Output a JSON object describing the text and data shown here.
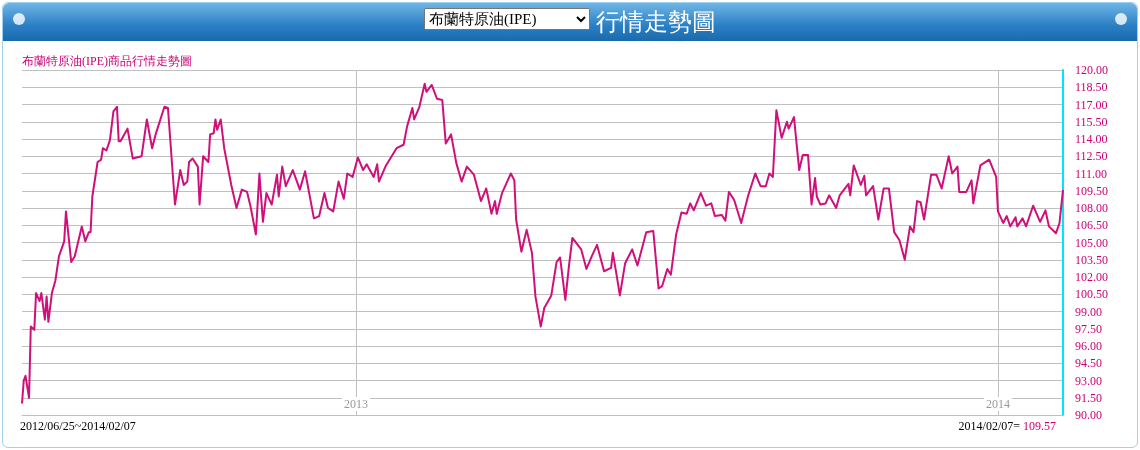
{
  "chart_data": {
    "type": "line",
    "title": "行情走勢圖",
    "subtitle": "布蘭特原油(IPE)商品行情走勢圖",
    "annotations": [
      "布蘭特原油(IPE)",
      "2012/06/25~2014/02/07",
      "2014/02/07= 109.57"
    ],
    "x": [
      "2012-06-25",
      "2012-06-26",
      "2012-06-27",
      "2012-06-29",
      "2012-06-30",
      "2012-07-02",
      "2012-07-03",
      "2012-07-05",
      "2012-07-06",
      "2012-07-08",
      "2012-07-09",
      "2012-07-10",
      "2012-07-12",
      "2012-07-14",
      "2012-07-16",
      "2012-07-19",
      "2012-07-20",
      "2012-07-23",
      "2012-07-25",
      "2012-07-29",
      "2012-07-31",
      "2012-08-02",
      "2012-08-03",
      "2012-08-04",
      "2012-08-07",
      "2012-08-09",
      "2012-08-10",
      "2012-08-12",
      "2012-08-14",
      "2012-08-16",
      "2012-08-18",
      "2012-08-19",
      "2012-08-20",
      "2012-08-24",
      "2012-08-27",
      "2012-09-01",
      "2012-09-04",
      "2012-09-07",
      "2012-09-09",
      "2012-09-14",
      "2012-09-16",
      "2012-09-20",
      "2012-09-23",
      "2012-09-25",
      "2012-09-27",
      "2012-09-28",
      "2012-09-30",
      "2012-10-03",
      "2012-10-04",
      "2012-10-06",
      "2012-10-09",
      "2012-10-10",
      "2012-10-12",
      "2012-10-13",
      "2012-10-14",
      "2012-10-16",
      "2012-10-18",
      "2012-10-22",
      "2012-10-25",
      "2012-10-28",
      "2012-10-31",
      "2012-11-02",
      "2012-11-05",
      "2012-11-07",
      "2012-11-09",
      "2012-11-11",
      "2012-11-14",
      "2012-11-17",
      "2012-11-18",
      "2012-11-20",
      "2012-11-22",
      "2012-11-26",
      "2012-11-30",
      "2012-12-03",
      "2012-12-08",
      "2012-12-11",
      "2012-12-14",
      "2012-12-16",
      "2012-12-19",
      "2012-12-22",
      "2012-12-25",
      "2012-12-27",
      "2012-12-30",
      "2013-01-02",
      "2013-01-05",
      "2013-01-07",
      "2013-01-11",
      "2013-01-13",
      "2013-01-14",
      "2013-01-18",
      "2013-01-24",
      "2013-01-28",
      "2013-01-30",
      "2013-02-02",
      "2013-02-03",
      "2013-02-06",
      "2013-02-09",
      "2013-02-10",
      "2013-02-13",
      "2013-02-16",
      "2013-02-19",
      "2013-02-21",
      "2013-02-24",
      "2013-02-27",
      "2013-03-02",
      "2013-03-05",
      "2013-03-09",
      "2013-03-13",
      "2013-03-16",
      "2013-03-19",
      "2013-03-21",
      "2013-03-22",
      "2013-03-25",
      "2013-03-30",
      "2013-04-01",
      "2013-04-02",
      "2013-04-05",
      "2013-04-08",
      "2013-04-11",
      "2013-04-13",
      "2013-04-16",
      "2013-04-18",
      "2013-04-22",
      "2013-04-25",
      "2013-04-27",
      "2013-04-30",
      "2013-05-02",
      "2013-05-04",
      "2013-05-09",
      "2013-05-12",
      "2013-05-15",
      "2013-05-18",
      "2013-05-22",
      "2013-05-26",
      "2013-05-27",
      "2013-05-29",
      "2013-05-31",
      "2013-06-03",
      "2013-06-07",
      "2013-06-10",
      "2013-06-15",
      "2013-06-19",
      "2013-06-22",
      "2013-06-24",
      "2013-06-27",
      "2013-06-29",
      "2013-07-02",
      "2013-07-05",
      "2013-07-08",
      "2013-07-10",
      "2013-07-12",
      "2013-07-16",
      "2013-07-19",
      "2013-07-22",
      "2013-07-24",
      "2013-07-28",
      "2013-07-30",
      "2013-08-01",
      "2013-08-04",
      "2013-08-08",
      "2013-08-12",
      "2013-08-16",
      "2013-08-19",
      "2013-08-22",
      "2013-08-24",
      "2013-08-26",
      "2013-08-28",
      "2013-08-31",
      "2013-09-03",
      "2013-09-04",
      "2013-09-07",
      "2013-09-10",
      "2013-09-12",
      "2013-09-15",
      "2013-09-17",
      "2013-09-19",
      "2013-09-20",
      "2013-09-22",
      "2013-09-25",
      "2013-09-27",
      "2013-10-01",
      "2013-10-03",
      "2013-10-08",
      "2013-10-09",
      "2013-10-11",
      "2013-10-15",
      "2013-10-17",
      "2013-10-18",
      "2013-10-22",
      "2013-10-25",
      "2013-10-28",
      "2013-10-31",
      "2013-11-03",
      "2013-11-06",
      "2013-11-09",
      "2013-11-12",
      "2013-11-14",
      "2013-11-16",
      "2013-11-18",
      "2013-11-20",
      "2013-11-24",
      "2013-11-27",
      "2013-11-30",
      "2013-12-04",
      "2013-12-06",
      "2013-12-09",
      "2013-12-10",
      "2013-12-14",
      "2013-12-17",
      "2013-12-18",
      "2013-12-22",
      "2013-12-27",
      "2013-12-31",
      "2014-01-01",
      "2014-01-04",
      "2014-01-06",
      "2014-01-08",
      "2014-01-11",
      "2014-01-12",
      "2014-01-15",
      "2014-01-17",
      "2014-01-21",
      "2014-01-25",
      "2014-01-28",
      "2014-01-30",
      "2014-02-03",
      "2014-02-05",
      "2014-02-07"
    ],
    "series": [
      {
        "color": "#d0107a",
        "values": [
          91.0,
          93.0,
          93.4,
          91.5,
          97.7,
          97.4,
          100.6,
          99.9,
          100.6,
          98.3,
          100.3,
          98.1,
          100.6,
          101.7,
          103.8,
          105.1,
          107.7,
          103.3,
          103.8,
          106.4,
          105.1,
          105.9,
          105.9,
          109.0,
          112.0,
          112.2,
          113.2,
          113.0,
          113.9,
          116.4,
          116.8,
          113.8,
          113.8,
          114.9,
          112.3,
          112.5,
          115.7,
          113.2,
          114.4,
          116.8,
          116.7,
          108.3,
          111.3,
          110.0,
          110.3,
          112.0,
          112.3,
          111.6,
          108.3,
          112.5,
          112.0,
          114.4,
          114.5,
          115.7,
          114.8,
          115.7,
          113.2,
          110.0,
          108.0,
          109.6,
          109.4,
          108.1,
          105.7,
          111.0,
          106.8,
          109.3,
          108.3,
          110.9,
          109.0,
          111.6,
          109.9,
          111.3,
          109.6,
          111.2,
          107.1,
          107.3,
          109.3,
          108.0,
          107.7,
          110.3,
          108.8,
          111.0,
          110.7,
          112.4,
          111.3,
          111.8,
          110.7,
          111.8,
          110.3,
          111.7,
          113.2,
          113.5,
          115.1,
          116.7,
          115.7,
          116.8,
          118.8,
          118.1,
          118.7,
          117.5,
          117.4,
          113.6,
          114.4,
          111.9,
          110.3,
          111.6,
          110.9,
          108.6,
          109.7,
          107.5,
          108.6,
          107.5,
          109.3,
          111.0,
          110.4,
          107.0,
          104.2,
          106.1,
          104.1,
          100.3,
          97.7,
          99.3,
          100.4,
          103.3,
          103.7,
          100.0,
          102.9,
          105.4,
          104.4,
          102.7,
          103.8,
          104.8,
          102.5,
          102.8,
          104.1,
          102.3,
          100.4,
          103.2,
          104.4,
          103.0,
          105.9,
          106.0,
          101.0,
          101.2,
          102.7,
          102.2,
          105.7,
          107.6,
          107.5,
          108.4,
          107.8,
          109.3,
          108.2,
          108.4,
          107.3,
          107.4,
          106.9,
          109.4,
          108.7,
          106.7,
          109.1,
          111.0,
          109.9,
          109.9,
          111.0,
          110.7,
          116.5,
          114.1,
          115.5,
          114.9,
          115.9,
          111.3,
          112.6,
          112.6,
          108.3,
          110.6,
          109.0,
          108.3,
          108.4,
          109.1,
          108.0,
          109.1,
          110.1,
          109.1,
          111.7,
          110.0,
          110.8,
          109.1,
          109.9,
          107.0,
          109.7,
          109.7,
          105.9,
          105.2,
          103.5,
          106.4,
          105.9,
          108.6,
          108.5,
          107.0,
          110.9,
          110.9,
          109.7,
          112.5,
          111.0,
          111.6,
          109.4,
          109.4,
          110.4,
          108.4,
          111.7,
          112.2,
          110.7,
          107.7,
          106.7,
          107.3,
          106.4,
          107.2,
          106.4,
          107.1,
          106.4,
          108.2,
          106.8,
          107.8,
          106.4,
          105.8,
          106.7,
          109.57
        ]
      }
    ],
    "xlim": [
      "2012-06-25",
      "2014-02-07"
    ],
    "xticks": [
      {
        "value": "2013-01-01",
        "label": "2013"
      },
      {
        "value": "2014-01-01",
        "label": "2014"
      }
    ],
    "ylim": [
      90,
      120
    ],
    "yticks": [
      {
        "value": 90,
        "label": "90.00"
      },
      {
        "value": 91.5,
        "label": "91.50"
      },
      {
        "value": 93,
        "label": "93.00"
      },
      {
        "value": 94.5,
        "label": "94.50"
      },
      {
        "value": 96,
        "label": "96.00"
      },
      {
        "value": 97.5,
        "label": "97.50"
      },
      {
        "value": 99,
        "label": "99.00"
      },
      {
        "value": 100.5,
        "label": "100.50"
      },
      {
        "value": 102,
        "label": "102.00"
      },
      {
        "value": 103.5,
        "label": "103.50"
      },
      {
        "value": 105,
        "label": "105.00"
      },
      {
        "value": 106.5,
        "label": "106.50"
      },
      {
        "value": 108,
        "label": "108.00"
      },
      {
        "value": 109.5,
        "label": "109.50"
      },
      {
        "value": 111,
        "label": "111.00"
      },
      {
        "value": 112.5,
        "label": "112.50"
      },
      {
        "value": 114,
        "label": "114.00"
      },
      {
        "value": 115.5,
        "label": "115.50"
      },
      {
        "value": 117,
        "label": "117.00"
      },
      {
        "value": 118.5,
        "label": "118.50"
      },
      {
        "value": 120,
        "label": "120.00"
      }
    ],
    "grid": true,
    "marker": "none"
  }
}
